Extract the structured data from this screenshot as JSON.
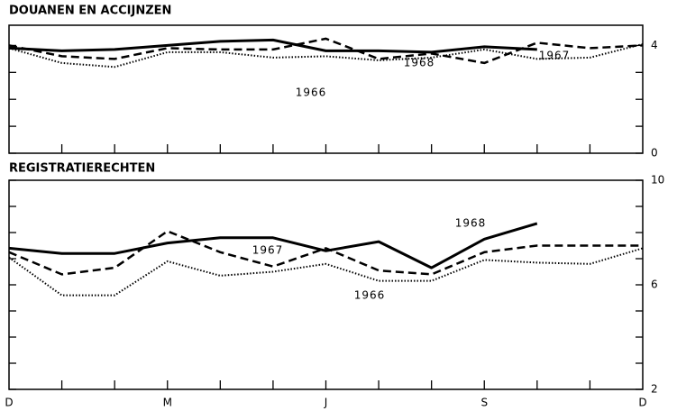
{
  "chart_data": [
    {
      "type": "line",
      "title": "DOUANEN EN ACCIJNZEN",
      "ylim": [
        0,
        4.75
      ],
      "yticks": [
        0,
        4
      ],
      "yminor": [
        1,
        2,
        3
      ],
      "series": [
        {
          "name": "1968",
          "color": "#000",
          "style": "solid",
          "values": [
            3.9,
            3.8,
            3.85,
            4.0,
            4.15,
            4.2,
            3.8,
            3.8,
            3.75,
            3.95,
            3.85,
            null,
            null
          ]
        },
        {
          "name": "1967",
          "color": "#000",
          "style": "dashed",
          "values": [
            4.0,
            3.6,
            3.5,
            3.9,
            3.85,
            3.85,
            4.25,
            3.5,
            3.7,
            3.35,
            4.1,
            3.9,
            4.0
          ]
        },
        {
          "name": "1966",
          "color": "#000",
          "style": "dotted",
          "values": [
            3.9,
            3.35,
            3.2,
            3.75,
            3.75,
            3.55,
            3.6,
            3.45,
            3.55,
            3.85,
            3.5,
            3.55,
            4.05
          ]
        }
      ]
    },
    {
      "type": "line",
      "title": "REGISTRATIERECHTEN",
      "categories": [
        "D",
        null,
        null,
        "M",
        null,
        null,
        "J",
        null,
        null,
        "S",
        null,
        null,
        "D"
      ],
      "ylim": [
        2,
        10
      ],
      "yticks": [
        2,
        6,
        10
      ],
      "yminor": [
        3,
        4,
        5,
        7,
        8,
        9
      ],
      "series": [
        {
          "name": "1968",
          "color": "#000",
          "style": "solid",
          "values": [
            7.4,
            7.2,
            7.2,
            7.6,
            7.8,
            7.8,
            7.3,
            7.65,
            6.65,
            7.75,
            8.35,
            null,
            null
          ]
        },
        {
          "name": "1967",
          "color": "#000",
          "style": "dashed",
          "values": [
            7.25,
            6.4,
            6.65,
            8.05,
            7.25,
            6.7,
            7.4,
            6.55,
            6.4,
            7.25,
            7.5,
            7.5,
            7.5
          ]
        },
        {
          "name": "1966",
          "color": "#000",
          "style": "dotted",
          "values": [
            7.05,
            5.6,
            5.6,
            6.9,
            6.35,
            6.5,
            6.8,
            6.15,
            6.15,
            6.95,
            6.85,
            6.8,
            7.4
          ]
        }
      ]
    }
  ]
}
